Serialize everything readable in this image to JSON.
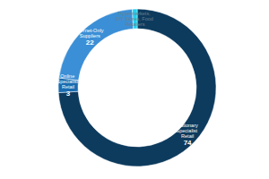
{
  "chart_data": {
    "type": "donut",
    "categories": [
      "Stationary Specialist Retail",
      "Online Specialist Retail",
      "Internet-Only Suppliers",
      "Hypermarkets, DIY Stores, Food Retailers"
    ],
    "values": [
      74,
      3,
      22,
      1
    ],
    "colors": [
      "#0d3b5e",
      "#1a6cb0",
      "#3b8fd6",
      "#22cfee"
    ],
    "data_labels": true,
    "value_labels": [
      "74",
      "3",
      "22",
      null
    ]
  }
}
